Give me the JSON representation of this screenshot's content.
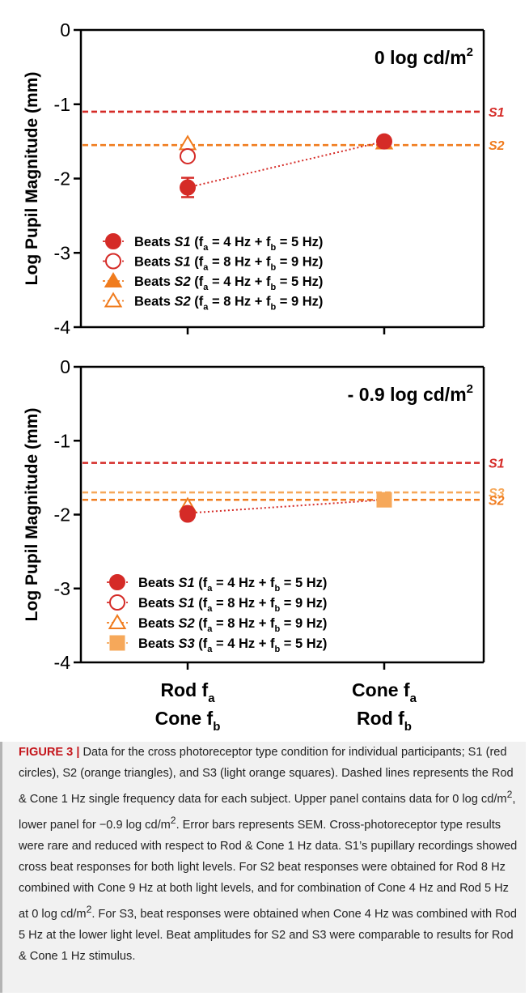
{
  "colors": {
    "s1": "#d52b27",
    "s2": "#f07c1e",
    "s3": "#f6a85a",
    "axis": "#000000"
  },
  "chart_data": [
    {
      "type": "scatter",
      "panel": "upper",
      "annotation": "0 log cd/m",
      "annotation_sup": "2",
      "ylabel": "Log Pupil Magnitude (mm)",
      "ylim": [
        -4,
        0
      ],
      "yticks": [
        "0",
        "-1",
        "-2",
        "-3",
        "-4"
      ],
      "x_categories": [
        {
          "line1": "Rod f",
          "sub1": "a",
          "line2": "Cone f",
          "sub2": "b"
        },
        {
          "line1": "Cone f",
          "sub1": "a",
          "line2": "Rod f",
          "sub2": "b"
        }
      ],
      "reference_lines": [
        {
          "name": "S1",
          "value": -1.1,
          "color": "#d52b27"
        },
        {
          "name": "S2",
          "value": -1.55,
          "color": "#f07c1e"
        }
      ],
      "series": [
        {
          "name_pre": "Beats ",
          "name_subj": "S1",
          "name_freq": " (f",
          "sub_a": "a",
          "mid": " = 4 Hz + f",
          "sub_b": "b",
          "post": " = 5 Hz)",
          "marker": "circle-filled",
          "color": "#d52b27",
          "x": [
            0,
            1
          ],
          "y": [
            -2.12,
            -1.5
          ],
          "sem": [
            0.13,
            0
          ],
          "connect": true
        },
        {
          "name_pre": "Beats ",
          "name_subj": "S1",
          "name_freq": " (f",
          "sub_a": "a",
          "mid": " = 8 Hz + f",
          "sub_b": "b",
          "post": " = 9 Hz)",
          "marker": "circle-open",
          "color": "#d52b27",
          "x": [
            0
          ],
          "y": [
            -1.7
          ],
          "sem": [
            0
          ],
          "connect": false
        },
        {
          "name_pre": "Beats ",
          "name_subj": "S2",
          "name_freq": " (f",
          "sub_a": "a",
          "mid": " = 4 Hz + f",
          "sub_b": "b",
          "post": " = 5 Hz)",
          "marker": "triangle-filled",
          "color": "#f07c1e",
          "x": [
            1
          ],
          "y": [
            -1.52
          ],
          "sem": [
            0
          ],
          "connect": false
        },
        {
          "name_pre": "Beats ",
          "name_subj": "S2",
          "name_freq": " (f",
          "sub_a": "a",
          "mid": " = 8 Hz + f",
          "sub_b": "b",
          "post": " = 9 Hz)",
          "marker": "triangle-open",
          "color": "#f07c1e",
          "x": [
            0
          ],
          "y": [
            -1.53
          ],
          "sem": [
            0
          ],
          "connect": false
        }
      ]
    },
    {
      "type": "scatter",
      "panel": "lower",
      "annotation": "- 0.9 log cd/m",
      "annotation_sup": "2",
      "ylabel": "Log Pupil Magnitude (mm)",
      "ylim": [
        -4,
        0
      ],
      "yticks": [
        "0",
        "-1",
        "-2",
        "-3",
        "-4"
      ],
      "x_categories": [
        {
          "line1": "Rod f",
          "sub1": "a",
          "line2": "Cone f",
          "sub2": "b"
        },
        {
          "line1": "Cone f",
          "sub1": "a",
          "line2": "Rod f",
          "sub2": "b"
        }
      ],
      "reference_lines": [
        {
          "name": "S1",
          "value": -1.3,
          "color": "#d52b27"
        },
        {
          "name": "S3",
          "value": -1.7,
          "color": "#f6a85a"
        },
        {
          "name": "S2",
          "value": -1.8,
          "color": "#f07c1e"
        }
      ],
      "series": [
        {
          "name_pre": "Beats ",
          "name_subj": "S1",
          "name_freq": " (f",
          "sub_a": "a",
          "mid": " = 4 Hz + f",
          "sub_b": "b",
          "post": " = 5 Hz)",
          "marker": "circle-filled",
          "color": "#d52b27",
          "x": [
            0
          ],
          "y": [
            -1.98
          ],
          "sem": [
            0
          ],
          "connect": true,
          "connect_to": [
            1,
            -1.8
          ]
        },
        {
          "name_pre": "Beats ",
          "name_subj": "S1",
          "name_freq": " (f",
          "sub_a": "a",
          "mid": " = 8 Hz + f",
          "sub_b": "b",
          "post": " = 9 Hz)",
          "marker": "circle-open",
          "color": "#d52b27",
          "x": [
            0
          ],
          "y": [
            -2.0
          ],
          "sem": [
            0
          ],
          "connect": false
        },
        {
          "name_pre": "Beats ",
          "name_subj": "S2",
          "name_freq": " (f",
          "sub_a": "a",
          "mid": " = 8 Hz + f",
          "sub_b": "b",
          "post": " = 9 Hz)",
          "marker": "triangle-open",
          "color": "#f07c1e",
          "x": [
            0
          ],
          "y": [
            -1.88
          ],
          "sem": [
            0
          ],
          "connect": false
        },
        {
          "name_pre": "Beats ",
          "name_subj": "S3",
          "name_freq": " (f",
          "sub_a": "a",
          "mid": " = 4 Hz + f",
          "sub_b": "b",
          "post": " = 5 Hz)",
          "marker": "square-filled",
          "color": "#f6a85a",
          "x": [
            1
          ],
          "y": [
            -1.8
          ],
          "sem": [
            0
          ],
          "connect": false
        }
      ]
    }
  ],
  "caption": {
    "label": "FIGURE 3 |",
    "text_1": " Data for the cross photoreceptor type condition for individual participants; S1 (red circles), S2 (orange triangles), and S3 (light orange squares). Dashed lines represents the Rod & Cone 1 Hz single frequency data for each subject. Upper panel contains data for 0 log cd/m",
    "sup_1": "2",
    "text_2": ", lower panel for −0.9 log cd/m",
    "sup_2": "2",
    "text_3": ". Error bars represents SEM. Cross-photoreceptor type results were rare and reduced with respect to Rod & Cone 1 Hz data. S1’s pupillary recordings showed cross beat responses for both light levels. For S2 beat responses were obtained for Rod 8 Hz combined with Cone 9 Hz at both light levels, and for combination of Cone 4 Hz and Rod 5 Hz at 0 log cd/m",
    "sup_3": "2",
    "text_4": ". For S3, beat responses were obtained when Cone 4 Hz was combined with Rod 5 Hz at the lower light level. Beat amplitudes for S2 and S3 were comparable to results for Rod & Cone 1 Hz stimulus."
  }
}
